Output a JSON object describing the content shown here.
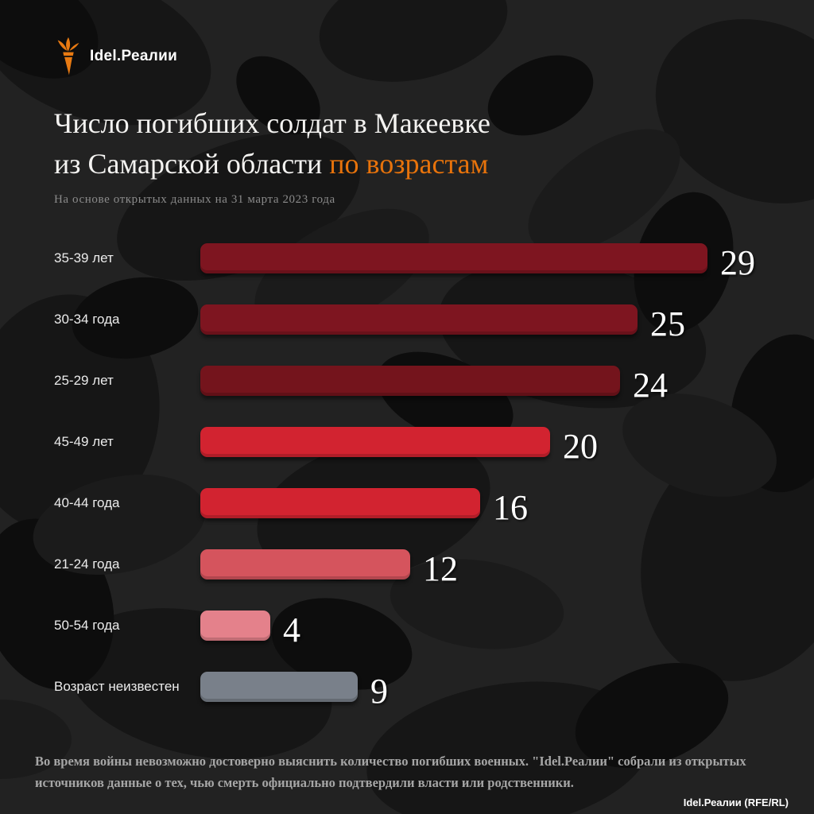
{
  "brand": {
    "logo_text": "Idel.Реалии",
    "credit": "Idel.Реалии (RFE/RL)",
    "logo_color": "#e87a12"
  },
  "header": {
    "title_line1": "Число погибших солдат в Макеевке",
    "title_line2_white": "из Самарской области ",
    "title_line2_orange": "по возрастам",
    "accent_color": "#e8730b",
    "subtitle": "На основе открытых данных на 31 марта 2023 года"
  },
  "chart_data": {
    "type": "bar",
    "orientation": "horizontal",
    "title": "Число погибших солдат в Макеевке из Самарской области по возрастам",
    "subtitle": "На основе открытых данных на 31 марта 2023 года",
    "categories": [
      "35-39 лет",
      "30-34 года",
      "25-29 лет",
      "45-49 лет",
      "40-44 года",
      "21-24 года",
      "50-54 года",
      "Возраст неизвестен"
    ],
    "values": [
      29,
      25,
      24,
      20,
      16,
      12,
      4,
      9
    ],
    "bar_colors": [
      "#7e1520",
      "#7e1520",
      "#74141c",
      "#d22330",
      "#d22330",
      "#d5545d",
      "#e4818b",
      "#79808a"
    ],
    "value_labels_shown": true,
    "xlim": [
      0,
      29
    ],
    "grid": false,
    "legend": false
  },
  "footer": {
    "text": "Во время войны невозможно достоверно выяснить количество погибших военных. \"Idel.Реалии\" собрали из открытых источников данные о тех, чью смерть официально подтвердили власти или родственники."
  }
}
